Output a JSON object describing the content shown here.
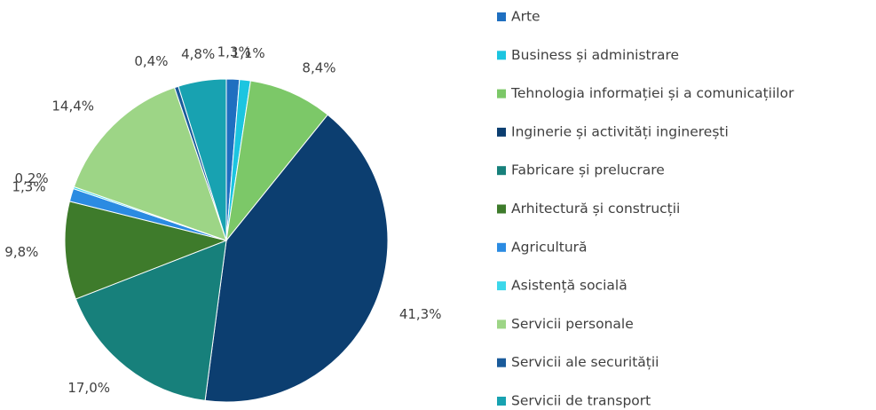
{
  "chart_data": {
    "type": "pie",
    "categories": [
      "Arte",
      "Business și administrare",
      "Tehnologia informației și a comunicațiilor",
      "Inginerie și activități inginerești",
      "Fabricare și prelucrare",
      "Arhitectură și construcții",
      "Agricultură",
      "Asistență socială",
      "Servicii personale",
      "Servicii ale securității",
      "Servicii de transport"
    ],
    "values": [
      1.3,
      1.1,
      8.4,
      41.3,
      17.0,
      9.8,
      1.3,
      0.2,
      14.4,
      0.4,
      4.8
    ],
    "value_labels": [
      "1,3%",
      "1,1%",
      "8,4%",
      "41,3%",
      "17,0%",
      "9,8%",
      "1,3%",
      "0,2%",
      "14,4%",
      "0,4%",
      "4,8%"
    ],
    "colors": [
      "#1f6fc0",
      "#1cc5e0",
      "#7cc868",
      "#0c3e70",
      "#17807b",
      "#3e7b2b",
      "#2b8be2",
      "#3cd7ea",
      "#9dd586",
      "#1a5b9b",
      "#18a2b1"
    ],
    "legend": "right"
  }
}
